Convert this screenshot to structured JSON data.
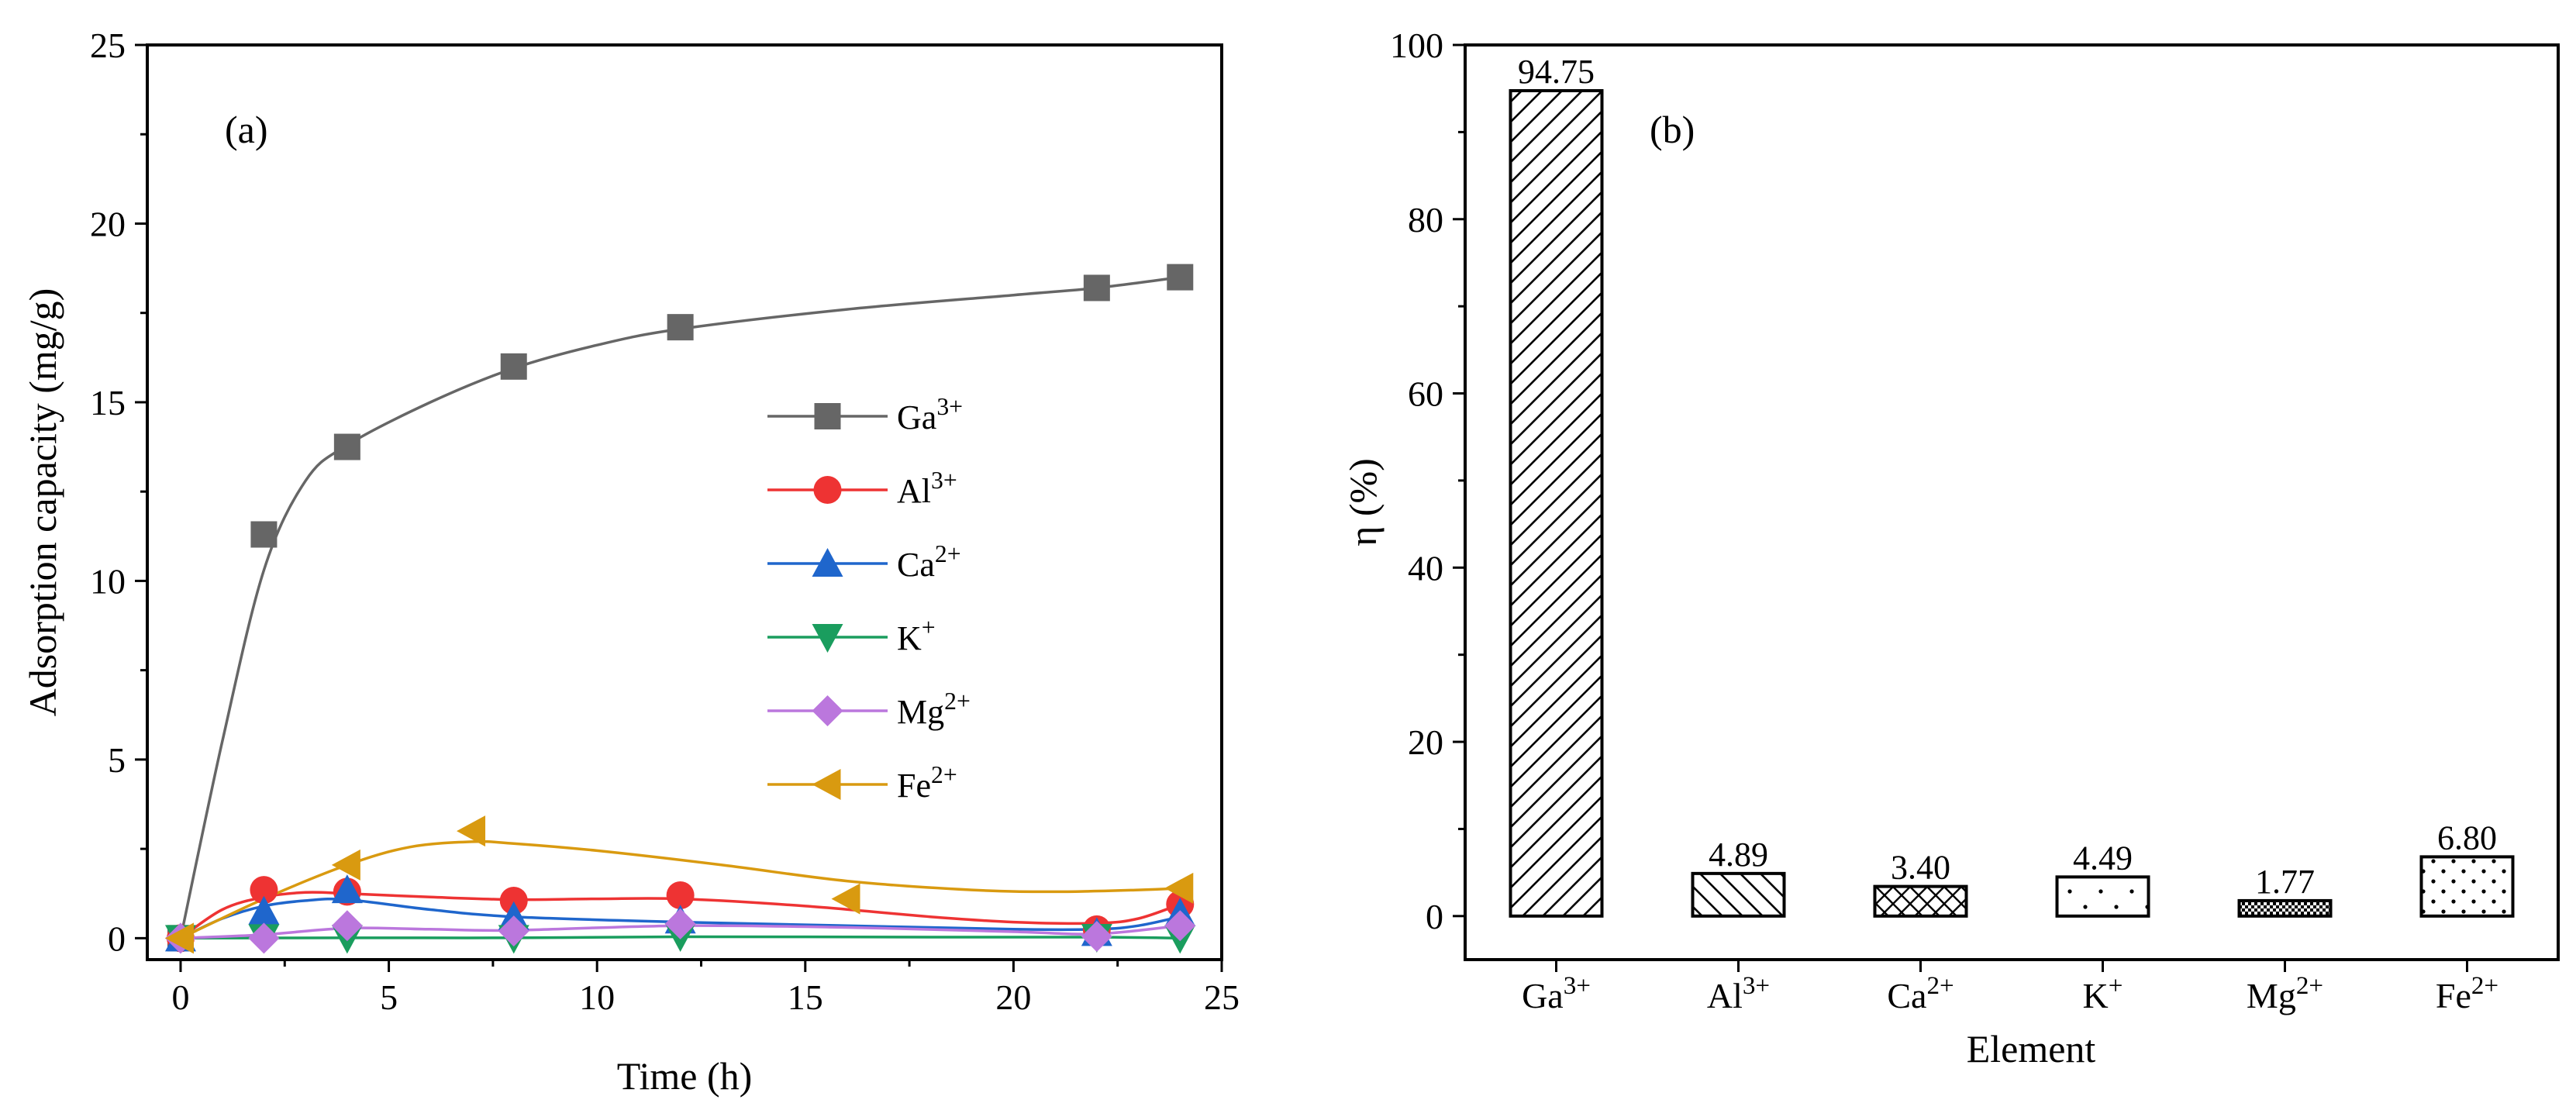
{
  "chart_data": [
    {
      "type": "line",
      "panel_label": "(a)",
      "xlabel": "Time (h)",
      "ylabel": "Adsorption capacity (mg/g)",
      "xlim": [
        -0.8,
        25
      ],
      "ylim": [
        -0.6,
        25
      ],
      "xticks": [
        0,
        5,
        10,
        15,
        20,
        25
      ],
      "yticks": [
        0,
        5,
        10,
        15,
        20,
        25
      ],
      "legend_position": "right-middle",
      "series": [
        {
          "name": "Ga",
          "charge": "3+",
          "color": "#666666",
          "marker": "square",
          "x": [
            0,
            2,
            4,
            8,
            12,
            22,
            24
          ],
          "y": [
            0.0,
            11.3,
            13.75,
            16.0,
            17.1,
            18.2,
            18.5
          ],
          "curve": [
            [
              0,
              0
            ],
            [
              1,
              5.5
            ],
            [
              2,
              10.3
            ],
            [
              3,
              12.8
            ],
            [
              4,
              13.8
            ],
            [
              6,
              15.0
            ],
            [
              8,
              15.95
            ],
            [
              10,
              16.6
            ],
            [
              12,
              17.05
            ],
            [
              16,
              17.6
            ],
            [
              20,
              18.0
            ],
            [
              22,
              18.2
            ],
            [
              24,
              18.5
            ]
          ]
        },
        {
          "name": "Al",
          "charge": "3+",
          "color": "#ee3333",
          "marker": "circle",
          "x": [
            0,
            2,
            4,
            8,
            12,
            22,
            24
          ],
          "y": [
            0.0,
            1.35,
            1.3,
            1.05,
            1.2,
            0.25,
            0.95
          ],
          "curve": [
            [
              0,
              0
            ],
            [
              1,
              0.8
            ],
            [
              2,
              1.15
            ],
            [
              3,
              1.28
            ],
            [
              4,
              1.25
            ],
            [
              6,
              1.15
            ],
            [
              8,
              1.08
            ],
            [
              10,
              1.1
            ],
            [
              12,
              1.1
            ],
            [
              15,
              0.9
            ],
            [
              18,
              0.6
            ],
            [
              20,
              0.45
            ],
            [
              22,
              0.42
            ],
            [
              23,
              0.55
            ],
            [
              24,
              0.95
            ]
          ]
        },
        {
          "name": "Ca",
          "charge": "2+",
          "color": "#1f66cc",
          "marker": "triangle-up",
          "x": [
            0,
            2,
            4,
            8,
            12,
            22,
            24
          ],
          "y": [
            0.0,
            0.75,
            1.35,
            0.6,
            0.5,
            0.15,
            0.7
          ],
          "curve": [
            [
              0,
              0
            ],
            [
              1,
              0.55
            ],
            [
              2,
              0.9
            ],
            [
              3,
              1.05
            ],
            [
              4,
              1.08
            ],
            [
              6,
              0.8
            ],
            [
              8,
              0.6
            ],
            [
              12,
              0.45
            ],
            [
              16,
              0.35
            ],
            [
              20,
              0.25
            ],
            [
              22,
              0.25
            ],
            [
              23,
              0.35
            ],
            [
              24,
              0.6
            ]
          ]
        },
        {
          "name": "K",
          "charge": "+",
          "color": "#1a9d5e",
          "marker": "triangle-down",
          "x": [
            0,
            2,
            4,
            8,
            12,
            22,
            24
          ],
          "y": [
            0.0,
            0.02,
            0.0,
            0.0,
            0.05,
            0.03,
            0.0
          ],
          "curve": [
            [
              0,
              0
            ],
            [
              4,
              0.01
            ],
            [
              8,
              0.01
            ],
            [
              12,
              0.04
            ],
            [
              18,
              0.03
            ],
            [
              22,
              0.03
            ],
            [
              24,
              0.0
            ]
          ]
        },
        {
          "name": "Mg",
          "charge": "2+",
          "color": "#bb77dd",
          "marker": "diamond",
          "x": [
            0,
            2,
            4,
            8,
            12,
            22,
            24
          ],
          "y": [
            0.0,
            0.0,
            0.35,
            0.2,
            0.4,
            0.05,
            0.35
          ],
          "curve": [
            [
              0,
              0
            ],
            [
              2,
              0.1
            ],
            [
              4,
              0.28
            ],
            [
              6,
              0.25
            ],
            [
              8,
              0.22
            ],
            [
              12,
              0.35
            ],
            [
              16,
              0.3
            ],
            [
              20,
              0.18
            ],
            [
              22,
              0.12
            ],
            [
              24,
              0.35
            ]
          ]
        },
        {
          "name": "Fe",
          "charge": "2+",
          "color": "#d99a10",
          "marker": "triangle-left",
          "x": [
            0,
            4,
            7,
            16,
            24
          ],
          "y": [
            0.0,
            2.05,
            3.0,
            1.1,
            1.4
          ],
          "curve": [
            [
              0,
              0
            ],
            [
              2,
              1.1
            ],
            [
              4,
              2.05
            ],
            [
              5.5,
              2.55
            ],
            [
              7,
              2.7
            ],
            [
              8,
              2.65
            ],
            [
              10,
              2.45
            ],
            [
              13,
              2.05
            ],
            [
              16,
              1.6
            ],
            [
              19,
              1.35
            ],
            [
              21,
              1.3
            ],
            [
              23,
              1.35
            ],
            [
              24,
              1.4
            ]
          ]
        }
      ]
    },
    {
      "type": "bar",
      "panel_label": "(b)",
      "xlabel": "Element",
      "ylabel": "η (%)",
      "ylim": [
        -5,
        100
      ],
      "yticks": [
        0,
        20,
        40,
        60,
        80,
        100
      ],
      "categories": [
        {
          "name": "Ga",
          "charge": "3+"
        },
        {
          "name": "Al",
          "charge": "3+"
        },
        {
          "name": "Ca",
          "charge": "2+"
        },
        {
          "name": "K",
          "charge": "+"
        },
        {
          "name": "Mg",
          "charge": "2+"
        },
        {
          "name": "Fe",
          "charge": "2+"
        }
      ],
      "values": [
        94.75,
        4.89,
        3.4,
        4.49,
        1.77,
        6.8
      ],
      "value_labels": [
        "94.75",
        "4.89",
        "3.40",
        "4.49",
        "1.77",
        "6.80"
      ],
      "fill_patterns": [
        "diagonal-up",
        "diagonal-down",
        "crosshatch",
        "sparse-dots",
        "dense-checker",
        "dots"
      ]
    }
  ]
}
